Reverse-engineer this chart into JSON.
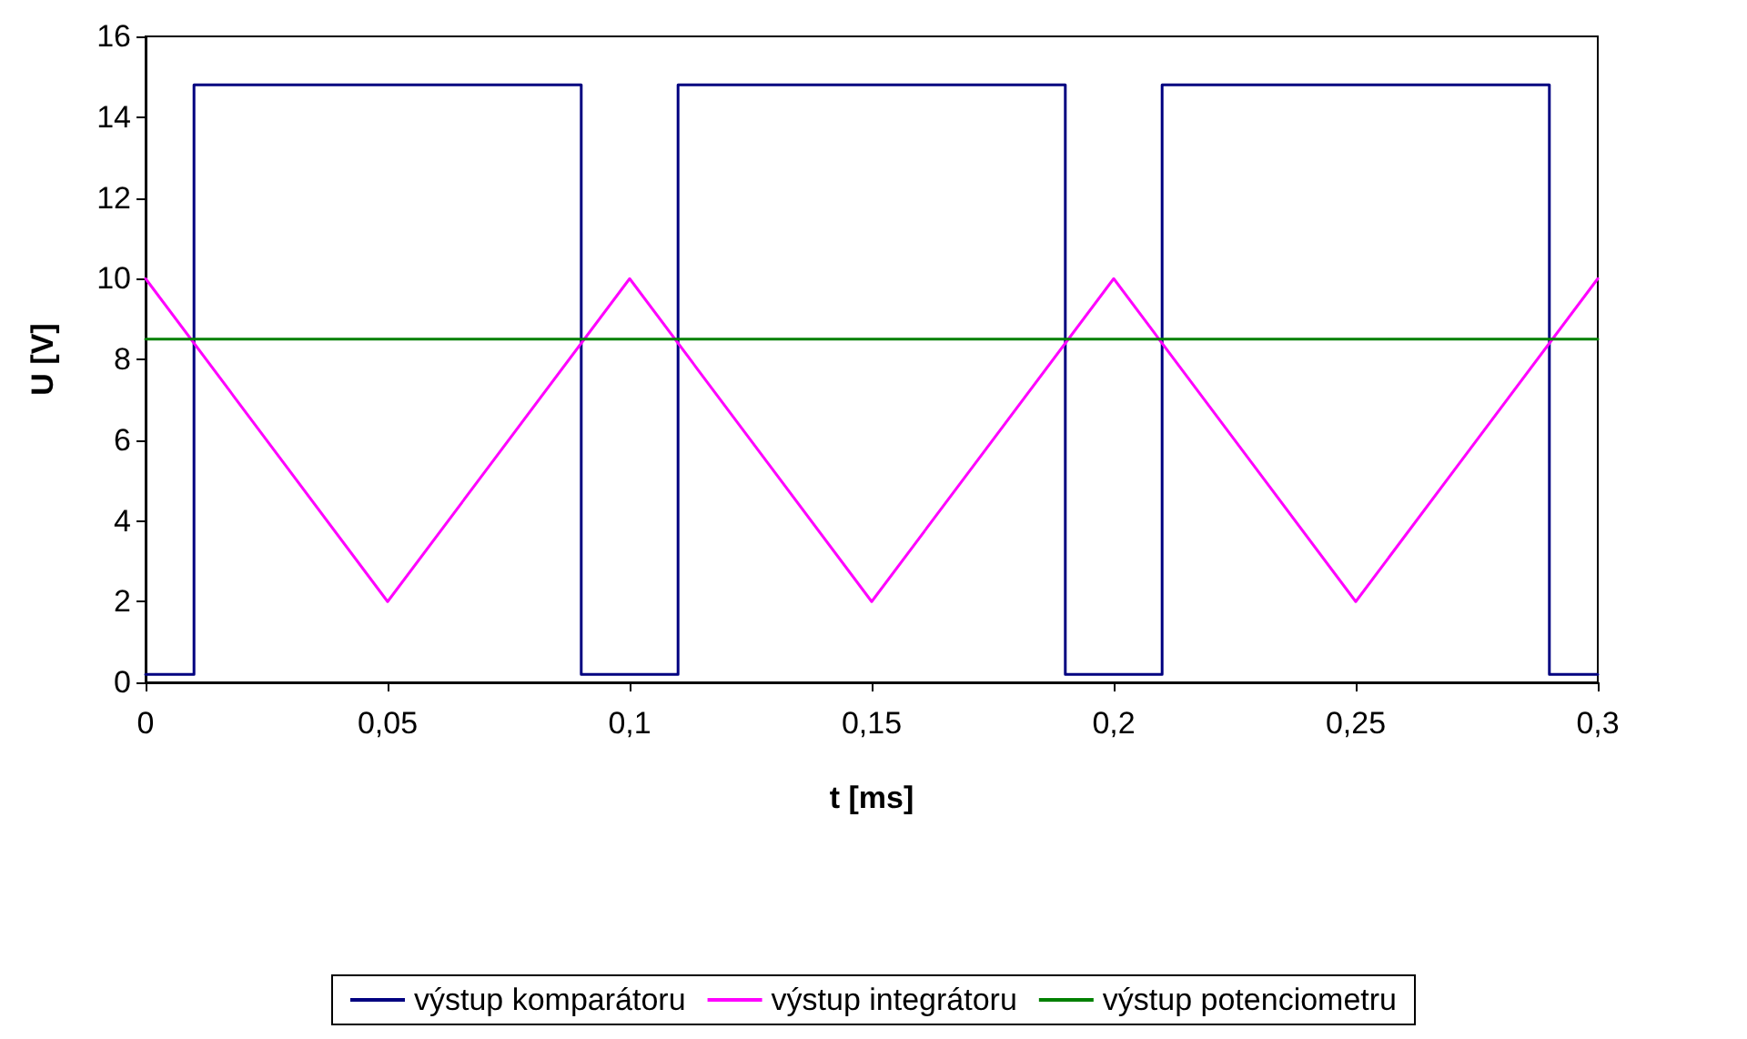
{
  "chart_data": {
    "type": "line",
    "xlabel": "t [ms]",
    "ylabel": "U [V]",
    "xlim": [
      0,
      0.3
    ],
    "ylim": [
      0,
      16
    ],
    "xticks": [
      0,
      {
        "value": 0.05,
        "label": "0,05"
      },
      {
        "value": 0.1,
        "label": "0,1"
      },
      {
        "value": 0.15,
        "label": "0,15"
      },
      {
        "value": 0.2,
        "label": "0,2"
      },
      {
        "value": 0.25,
        "label": "0,25"
      },
      {
        "value": 0.3,
        "label": "0,3"
      }
    ],
    "yticks": [
      0,
      2,
      4,
      6,
      8,
      10,
      12,
      14,
      16
    ],
    "grid": false,
    "legend": "bottom",
    "marker": "none",
    "line_style": "solid",
    "series": [
      {
        "name": "výstup komparátoru",
        "color": "#000080",
        "x": [
          0,
          0.01,
          0.01,
          0.09,
          0.09,
          0.11,
          0.11,
          0.19,
          0.19,
          0.21,
          0.21,
          0.29,
          0.29,
          0.3
        ],
        "values": [
          0.2,
          0.2,
          14.8,
          14.8,
          0.2,
          0.2,
          14.8,
          14.8,
          0.2,
          0.2,
          14.8,
          14.8,
          0.2,
          0.2
        ]
      },
      {
        "name": "výstup integrátoru",
        "color": "#ff00ff",
        "x": [
          0,
          0.05,
          0.1,
          0.15,
          0.2,
          0.25,
          0.3
        ],
        "values": [
          10,
          2,
          10,
          2,
          10,
          2,
          10
        ]
      },
      {
        "name": "výstup potenciometru",
        "color": "#008000",
        "x": [
          0,
          0.3
        ],
        "values": [
          8.5,
          8.5
        ]
      }
    ]
  }
}
